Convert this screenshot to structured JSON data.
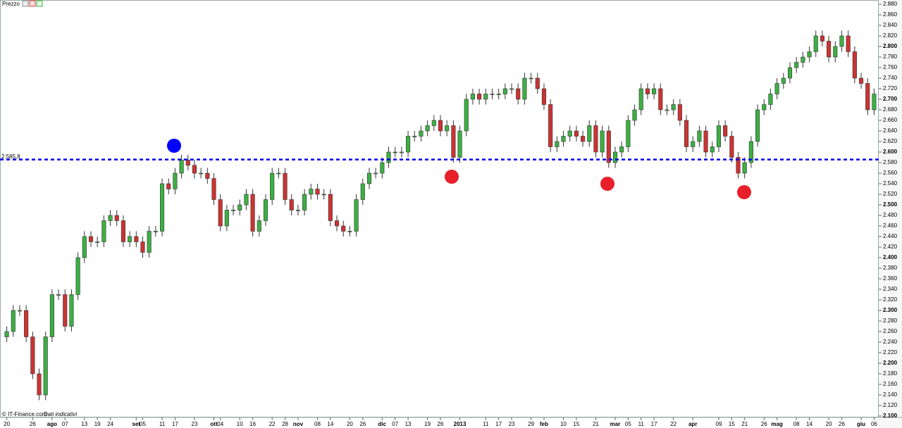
{
  "chart_data": {
    "type": "candlestick",
    "title": "Prezzo",
    "source": "© IT-Finance.com",
    "note": "Dati indicativi",
    "up_color": "#3cb043",
    "down_color": "#cc3333",
    "open": [
      2250,
      2260,
      2300,
      2300,
      2250,
      2180,
      2140,
      2250,
      2330,
      2330,
      2270,
      2330,
      2400,
      2440,
      2430,
      2430,
      2470,
      2480,
      2470,
      2430,
      2440,
      2430,
      2410,
      2450,
      2450,
      2540,
      2530,
      2560,
      2585,
      2575,
      2560,
      2560,
      2550,
      2510,
      2460,
      2490,
      2490,
      2500,
      2520,
      2450,
      2470,
      2510,
      2560,
      2560,
      2510,
      2490,
      2490,
      2520,
      2530,
      2520,
      2520,
      2470,
      2460,
      2450,
      2450,
      2510,
      2540,
      2560,
      2560,
      2580,
      2600,
      2600,
      2600,
      2630,
      2630,
      2640,
      2650,
      2660,
      2640,
      2650,
      2590,
      2640,
      2700,
      2710,
      2700,
      2710,
      2710,
      2710,
      2720,
      2720,
      2700,
      2740,
      2740,
      2720,
      2690,
      2610,
      2620,
      2630,
      2640,
      2630,
      2620,
      2650,
      2600,
      2640,
      2580,
      2600,
      2610,
      2660,
      2680,
      2720,
      2710,
      2720,
      2680,
      2680,
      2690,
      2660,
      2610,
      2620,
      2640,
      2600,
      2610,
      2650,
      2630,
      2590,
      2560,
      2580,
      2620,
      2680,
      2690,
      2710,
      2730,
      2740,
      2760,
      2770,
      2780,
      2790,
      2820,
      2810,
      2780,
      2800,
      2820,
      2790,
      2740,
      2730,
      2680
    ],
    "high": [
      2270,
      2310,
      2310,
      2310,
      2260,
      2190,
      2260,
      2340,
      2340,
      2340,
      2340,
      2410,
      2450,
      2450,
      2440,
      2480,
      2490,
      2490,
      2480,
      2450,
      2450,
      2440,
      2460,
      2460,
      2550,
      2550,
      2570,
      2595,
      2595,
      2585,
      2570,
      2570,
      2560,
      2520,
      2500,
      2500,
      2510,
      2530,
      2530,
      2480,
      2520,
      2570,
      2570,
      2570,
      2520,
      2500,
      2530,
      2540,
      2540,
      2530,
      2530,
      2480,
      2470,
      2460,
      2520,
      2550,
      2570,
      2570,
      2590,
      2610,
      2610,
      2610,
      2640,
      2640,
      2650,
      2660,
      2670,
      2670,
      2660,
      2660,
      2650,
      2710,
      2720,
      2720,
      2720,
      2720,
      2720,
      2730,
      2730,
      2730,
      2750,
      2750,
      2750,
      2730,
      2700,
      2630,
      2640,
      2650,
      2650,
      2640,
      2660,
      2660,
      2650,
      2650,
      2610,
      2620,
      2670,
      2690,
      2730,
      2730,
      2730,
      2730,
      2690,
      2700,
      2700,
      2670,
      2630,
      2650,
      2650,
      2620,
      2660,
      2660,
      2640,
      2600,
      2590,
      2630,
      2690,
      2700,
      2720,
      2740,
      2750,
      2770,
      2780,
      2790,
      2800,
      2830,
      2830,
      2820,
      2810,
      2830,
      2830,
      2800,
      2750,
      2740,
      2720
    ],
    "low": [
      2240,
      2250,
      2290,
      2240,
      2170,
      2130,
      2130,
      2240,
      2320,
      2260,
      2260,
      2320,
      2390,
      2420,
      2420,
      2420,
      2460,
      2460,
      2420,
      2420,
      2420,
      2400,
      2400,
      2440,
      2440,
      2520,
      2520,
      2550,
      2565,
      2550,
      2550,
      2540,
      2500,
      2450,
      2450,
      2480,
      2480,
      2490,
      2440,
      2440,
      2460,
      2500,
      2550,
      2500,
      2480,
      2480,
      2480,
      2510,
      2510,
      2510,
      2460,
      2450,
      2440,
      2440,
      2440,
      2500,
      2530,
      2550,
      2550,
      2570,
      2590,
      2590,
      2590,
      2620,
      2620,
      2630,
      2640,
      2630,
      2630,
      2580,
      2580,
      2630,
      2690,
      2690,
      2690,
      2700,
      2700,
      2700,
      2710,
      2690,
      2690,
      2730,
      2710,
      2680,
      2600,
      2600,
      2610,
      2620,
      2620,
      2610,
      2610,
      2590,
      2590,
      2570,
      2570,
      2590,
      2600,
      2650,
      2670,
      2700,
      2700,
      2670,
      2670,
      2670,
      2650,
      2600,
      2600,
      2610,
      2590,
      2590,
      2600,
      2620,
      2580,
      2550,
      2550,
      2570,
      2610,
      2670,
      2680,
      2700,
      2720,
      2730,
      2750,
      2760,
      2770,
      2780,
      2800,
      2770,
      2770,
      2790,
      2780,
      2730,
      2720,
      2670,
      2670
    ],
    "close": [
      2260,
      2300,
      2300,
      2250,
      2180,
      2140,
      2250,
      2330,
      2330,
      2270,
      2330,
      2400,
      2440,
      2430,
      2430,
      2470,
      2480,
      2470,
      2430,
      2440,
      2430,
      2410,
      2450,
      2450,
      2540,
      2530,
      2560,
      2585,
      2575,
      2560,
      2560,
      2550,
      2510,
      2460,
      2490,
      2490,
      2500,
      2520,
      2450,
      2470,
      2510,
      2560,
      2560,
      2510,
      2490,
      2490,
      2520,
      2530,
      2520,
      2520,
      2470,
      2460,
      2450,
      2450,
      2510,
      2540,
      2560,
      2560,
      2580,
      2600,
      2600,
      2600,
      2630,
      2630,
      2640,
      2650,
      2660,
      2640,
      2650,
      2590,
      2640,
      2700,
      2710,
      2700,
      2710,
      2710,
      2710,
      2720,
      2720,
      2700,
      2740,
      2740,
      2720,
      2690,
      2610,
      2620,
      2630,
      2640,
      2630,
      2620,
      2650,
      2600,
      2640,
      2580,
      2600,
      2610,
      2660,
      2680,
      2720,
      2710,
      2720,
      2680,
      2680,
      2690,
      2660,
      2610,
      2620,
      2640,
      2600,
      2610,
      2650,
      2630,
      2590,
      2560,
      2580,
      2620,
      2680,
      2690,
      2710,
      2730,
      2740,
      2760,
      2770,
      2780,
      2790,
      2820,
      2810,
      2780,
      2800,
      2820,
      2790,
      2740,
      2730,
      2680,
      2710
    ],
    "reference_line": {
      "value": 2585.8,
      "label": "2.585,8",
      "color": "#0000ee"
    },
    "ylim": [
      2100,
      2880
    ],
    "yticks": [
      {
        "value": 2100,
        "label": "2.100"
      },
      {
        "value": 2120,
        "label": "2.120"
      },
      {
        "value": 2140,
        "label": "2.140"
      },
      {
        "value": 2160,
        "label": "2.160"
      },
      {
        "value": 2180,
        "label": "2.180"
      },
      {
        "value": 2200,
        "label": "2.200"
      },
      {
        "value": 2220,
        "label": "2.220"
      },
      {
        "value": 2240,
        "label": "2.240"
      },
      {
        "value": 2260,
        "label": "2.260"
      },
      {
        "value": 2280,
        "label": "2.280"
      },
      {
        "value": 2300,
        "label": "2.300"
      },
      {
        "value": 2320,
        "label": "2.320"
      },
      {
        "value": 2340,
        "label": "2.340"
      },
      {
        "value": 2360,
        "label": "2.360"
      },
      {
        "value": 2380,
        "label": "2.380"
      },
      {
        "value": 2400,
        "label": "2.400"
      },
      {
        "value": 2420,
        "label": "2.420"
      },
      {
        "value": 2440,
        "label": "2.440"
      },
      {
        "value": 2460,
        "label": "2.460"
      },
      {
        "value": 2480,
        "label": "2.480"
      },
      {
        "value": 2500,
        "label": "2.500"
      },
      {
        "value": 2520,
        "label": "2.520"
      },
      {
        "value": 2540,
        "label": "2.540"
      },
      {
        "value": 2560,
        "label": "2.560"
      },
      {
        "value": 2580,
        "label": "2.580"
      },
      {
        "value": 2600,
        "label": "2.600"
      },
      {
        "value": 2620,
        "label": "2.620"
      },
      {
        "value": 2640,
        "label": "2.640"
      },
      {
        "value": 2660,
        "label": "2.660"
      },
      {
        "value": 2680,
        "label": "2.680"
      },
      {
        "value": 2700,
        "label": "2.700"
      },
      {
        "value": 2720,
        "label": "2.720"
      },
      {
        "value": 2740,
        "label": "2.740"
      },
      {
        "value": 2760,
        "label": "2.760"
      },
      {
        "value": 2780,
        "label": "2.780"
      },
      {
        "value": 2800,
        "label": "2.800"
      },
      {
        "value": 2820,
        "label": "2.820"
      },
      {
        "value": 2840,
        "label": "2.840"
      },
      {
        "value": 2860,
        "label": "2.860"
      },
      {
        "value": 2880,
        "label": "2.880"
      }
    ],
    "xticks": [
      {
        "value": 0,
        "label": "20"
      },
      {
        "value": 4,
        "label": "26"
      },
      {
        "value": 7,
        "label": "ago"
      },
      {
        "value": 9,
        "label": "07"
      },
      {
        "value": 12,
        "label": "13"
      },
      {
        "value": 14,
        "label": "19"
      },
      {
        "value": 16,
        "label": "24"
      },
      {
        "value": 20,
        "label": "set"
      },
      {
        "value": 21,
        "label": "05"
      },
      {
        "value": 24,
        "label": "11"
      },
      {
        "value": 26,
        "label": "17"
      },
      {
        "value": 29,
        "label": "23"
      },
      {
        "value": 32,
        "label": "ott"
      },
      {
        "value": 33,
        "label": "04"
      },
      {
        "value": 36,
        "label": "10"
      },
      {
        "value": 38,
        "label": "16"
      },
      {
        "value": 41,
        "label": "22"
      },
      {
        "value": 43,
        "label": "28"
      },
      {
        "value": 45,
        "label": "nov"
      },
      {
        "value": 48,
        "label": "08"
      },
      {
        "value": 50,
        "label": "14"
      },
      {
        "value": 53,
        "label": "20"
      },
      {
        "value": 55,
        "label": "26"
      },
      {
        "value": 58,
        "label": "dic"
      },
      {
        "value": 60,
        "label": "07"
      },
      {
        "value": 62,
        "label": "13"
      },
      {
        "value": 65,
        "label": "19"
      },
      {
        "value": 67,
        "label": "26"
      },
      {
        "value": 70,
        "label": "2013"
      },
      {
        "value": 74,
        "label": "11"
      },
      {
        "value": 76,
        "label": "17"
      },
      {
        "value": 78,
        "label": "23"
      },
      {
        "value": 81,
        "label": "29"
      },
      {
        "value": 83,
        "label": "feb"
      },
      {
        "value": 86,
        "label": "10"
      },
      {
        "value": 88,
        "label": "15"
      },
      {
        "value": 91,
        "label": "21"
      },
      {
        "value": 94,
        "label": "mar"
      },
      {
        "value": 96,
        "label": "05"
      },
      {
        "value": 98,
        "label": "11"
      },
      {
        "value": 100,
        "label": "17"
      },
      {
        "value": 103,
        "label": "22"
      },
      {
        "value": 106,
        "label": "apr"
      },
      {
        "value": 110,
        "label": "09"
      },
      {
        "value": 112,
        "label": "15"
      },
      {
        "value": 114,
        "label": "21"
      },
      {
        "value": 117,
        "label": "26"
      },
      {
        "value": 119,
        "label": "mag"
      },
      {
        "value": 122,
        "label": "08"
      },
      {
        "value": 124,
        "label": "14"
      },
      {
        "value": 127,
        "label": "20"
      },
      {
        "value": 129,
        "label": "26"
      },
      {
        "value": 132,
        "label": "giu"
      },
      {
        "value": 134,
        "label": "06"
      }
    ]
  }
}
